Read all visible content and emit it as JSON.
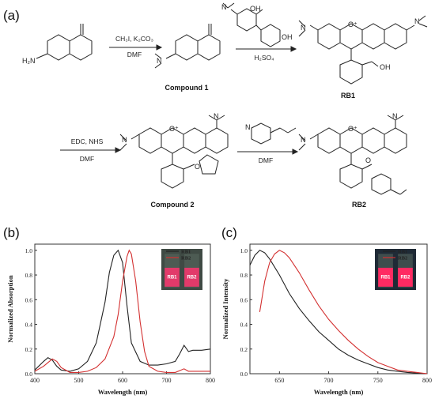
{
  "panels": {
    "a": "(a)",
    "b": "(b)",
    "c": "(c)"
  },
  "scheme": {
    "reagents1": [
      "CH₃I, K₂CO₃",
      "DMF"
    ],
    "reagent2": "H₂SO₄",
    "reagents3": [
      "EDC, NHS",
      "DMF"
    ],
    "reagent4": "DMF",
    "compounds": {
      "compound1": "Compound 1",
      "rb1": "RB1",
      "compound2": "Compound 2",
      "rb2": "RB2"
    },
    "atoms": {
      "H2N": "H₂N",
      "N": "N",
      "NH": "N",
      "O": "O",
      "Oplus": "O⁺",
      "OH": "OH",
      "COOH": "OH"
    }
  },
  "inset_labels": {
    "b": [
      "RB1",
      "RB2"
    ],
    "c": [
      "RB1",
      "RB2"
    ]
  },
  "colors": {
    "rb1": "#222222",
    "rb2": "#d33030"
  },
  "chart_data": [
    {
      "type": "line",
      "panel": "(b)",
      "xlabel": "Wavelength (nm)",
      "ylabel": "Normalized Absorption",
      "xlim": [
        400,
        800
      ],
      "ylim": [
        0,
        1.05
      ],
      "xticks": [
        400,
        500,
        600,
        700,
        800
      ],
      "yticks": [
        0.0,
        0.2,
        0.4,
        0.6,
        0.8,
        1.0
      ],
      "legend": "top-right",
      "series": [
        {
          "name": "RB1",
          "x": [
            400,
            420,
            430,
            440,
            450,
            460,
            480,
            500,
            520,
            540,
            560,
            570,
            580,
            590,
            600,
            610,
            620,
            640,
            660,
            680,
            700,
            720,
            730,
            740,
            750,
            760,
            780,
            800
          ],
          "y": [
            0.03,
            0.1,
            0.13,
            0.11,
            0.06,
            0.03,
            0.02,
            0.04,
            0.1,
            0.25,
            0.58,
            0.82,
            0.96,
            1.0,
            0.9,
            0.55,
            0.25,
            0.1,
            0.07,
            0.07,
            0.08,
            0.1,
            0.16,
            0.23,
            0.18,
            0.19,
            0.19,
            0.2
          ]
        },
        {
          "name": "RB2",
          "x": [
            400,
            420,
            430,
            440,
            450,
            460,
            480,
            500,
            520,
            540,
            560,
            580,
            590,
            600,
            610,
            615,
            620,
            630,
            640,
            650,
            660,
            680,
            700,
            720,
            740,
            750,
            760,
            780,
            800
          ],
          "y": [
            0.02,
            0.06,
            0.09,
            0.12,
            0.1,
            0.05,
            0.01,
            0.01,
            0.02,
            0.05,
            0.12,
            0.3,
            0.48,
            0.75,
            0.95,
            1.0,
            0.97,
            0.75,
            0.42,
            0.18,
            0.06,
            0.02,
            0.01,
            0.01,
            0.04,
            0.02,
            0.02,
            0.02,
            0.02
          ]
        }
      ]
    },
    {
      "type": "line",
      "panel": "(c)",
      "xlabel": "Wavelength (nm)",
      "ylabel": "Normalized Intensity",
      "xlim": [
        620,
        800
      ],
      "ylim": [
        0,
        1.05
      ],
      "xticks": [
        650,
        700,
        750,
        800
      ],
      "yticks": [
        0.0,
        0.2,
        0.4,
        0.6,
        0.8,
        1.0
      ],
      "legend": "top-right",
      "series": [
        {
          "name": "RB1",
          "x": [
            620,
            625,
            630,
            635,
            640,
            650,
            660,
            670,
            680,
            690,
            700,
            710,
            720,
            730,
            740,
            750,
            760,
            770,
            780,
            790,
            800
          ],
          "y": [
            0.88,
            0.96,
            1.0,
            0.98,
            0.93,
            0.8,
            0.65,
            0.53,
            0.43,
            0.34,
            0.27,
            0.2,
            0.15,
            0.11,
            0.08,
            0.05,
            0.03,
            0.02,
            0.01,
            0.005,
            0.0
          ]
        },
        {
          "name": "RB2",
          "x": [
            630,
            635,
            640,
            645,
            650,
            655,
            660,
            670,
            680,
            690,
            700,
            710,
            720,
            730,
            740,
            750,
            760,
            770,
            780,
            790,
            800
          ],
          "y": [
            0.5,
            0.75,
            0.9,
            0.97,
            1.0,
            0.98,
            0.94,
            0.82,
            0.68,
            0.55,
            0.44,
            0.35,
            0.27,
            0.2,
            0.14,
            0.09,
            0.06,
            0.03,
            0.02,
            0.01,
            0.0
          ]
        }
      ]
    }
  ]
}
